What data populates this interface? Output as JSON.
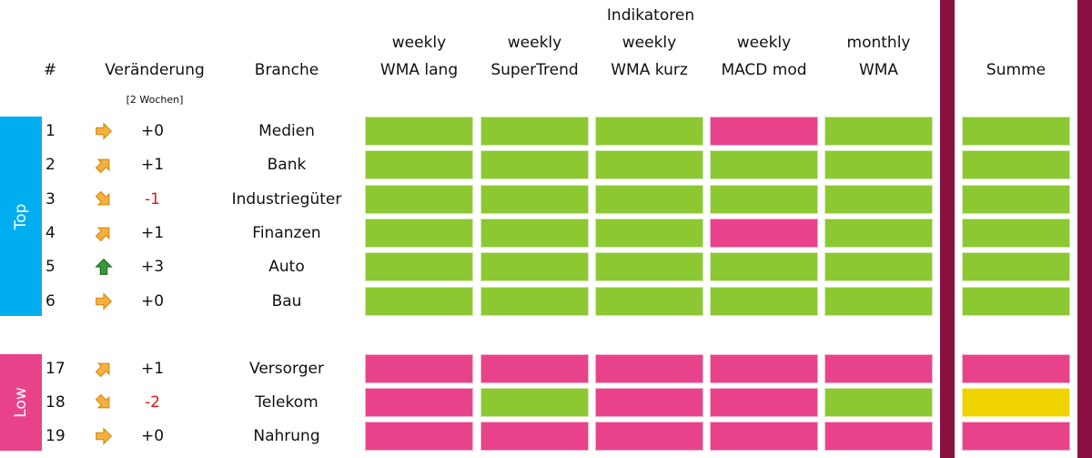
{
  "colors": {
    "green": "#8cc832",
    "pink": "#e8428a",
    "yellow": "#efd400",
    "blue": "#00aeef",
    "maroon": "#8a1042",
    "negative": "#ee1111",
    "arrow_orange": "#f5b042",
    "arrow_green": "#3a9a3a"
  },
  "header": {
    "indicators_title": "Indikatoren",
    "num": "#",
    "change": "Veränderung",
    "change_sub": "[2 Wochen]",
    "branch": "Branche",
    "sum": "Summe",
    "columns": [
      {
        "period": "weekly",
        "name": "WMA lang"
      },
      {
        "period": "weekly",
        "name": "SuperTrend"
      },
      {
        "period": "weekly",
        "name": "WMA kurz"
      },
      {
        "period": "weekly",
        "name": "MACD mod"
      },
      {
        "period": "monthly",
        "name": "WMA"
      }
    ]
  },
  "groups": {
    "top": "Top",
    "low": "Low"
  },
  "rows": [
    {
      "rank": "1",
      "arrow": "right",
      "change": "+0",
      "branch": "Medien",
      "cells": [
        "green",
        "green",
        "green",
        "pink",
        "green"
      ],
      "sum": "green"
    },
    {
      "rank": "2",
      "arrow": "up-right",
      "change": "+1",
      "branch": "Bank",
      "cells": [
        "green",
        "green",
        "green",
        "green",
        "green"
      ],
      "sum": "green"
    },
    {
      "rank": "3",
      "arrow": "down-right",
      "change": "-1",
      "branch": "Industriegüter",
      "cells": [
        "green",
        "green",
        "green",
        "green",
        "green"
      ],
      "sum": "green"
    },
    {
      "rank": "4",
      "arrow": "up-right",
      "change": "+1",
      "branch": "Finanzen",
      "cells": [
        "green",
        "green",
        "green",
        "pink",
        "green"
      ],
      "sum": "green"
    },
    {
      "rank": "5",
      "arrow": "up",
      "change": "+3",
      "branch": "Auto",
      "cells": [
        "green",
        "green",
        "green",
        "green",
        "green"
      ],
      "sum": "green"
    },
    {
      "rank": "6",
      "arrow": "right",
      "change": "+0",
      "branch": "Bau",
      "cells": [
        "green",
        "green",
        "green",
        "green",
        "green"
      ],
      "sum": "green"
    },
    {
      "rank": "17",
      "arrow": "up-right",
      "change": "+1",
      "branch": "Versorger",
      "cells": [
        "pink",
        "pink",
        "pink",
        "pink",
        "pink"
      ],
      "sum": "pink"
    },
    {
      "rank": "18",
      "arrow": "down-right",
      "change": "-2",
      "branch": "Telekom",
      "cells": [
        "pink",
        "green",
        "pink",
        "pink",
        "green"
      ],
      "sum": "yellow"
    },
    {
      "rank": "19",
      "arrow": "right",
      "change": "+0",
      "branch": "Nahrung",
      "cells": [
        "pink",
        "pink",
        "pink",
        "pink",
        "pink"
      ],
      "sum": "pink"
    }
  ]
}
